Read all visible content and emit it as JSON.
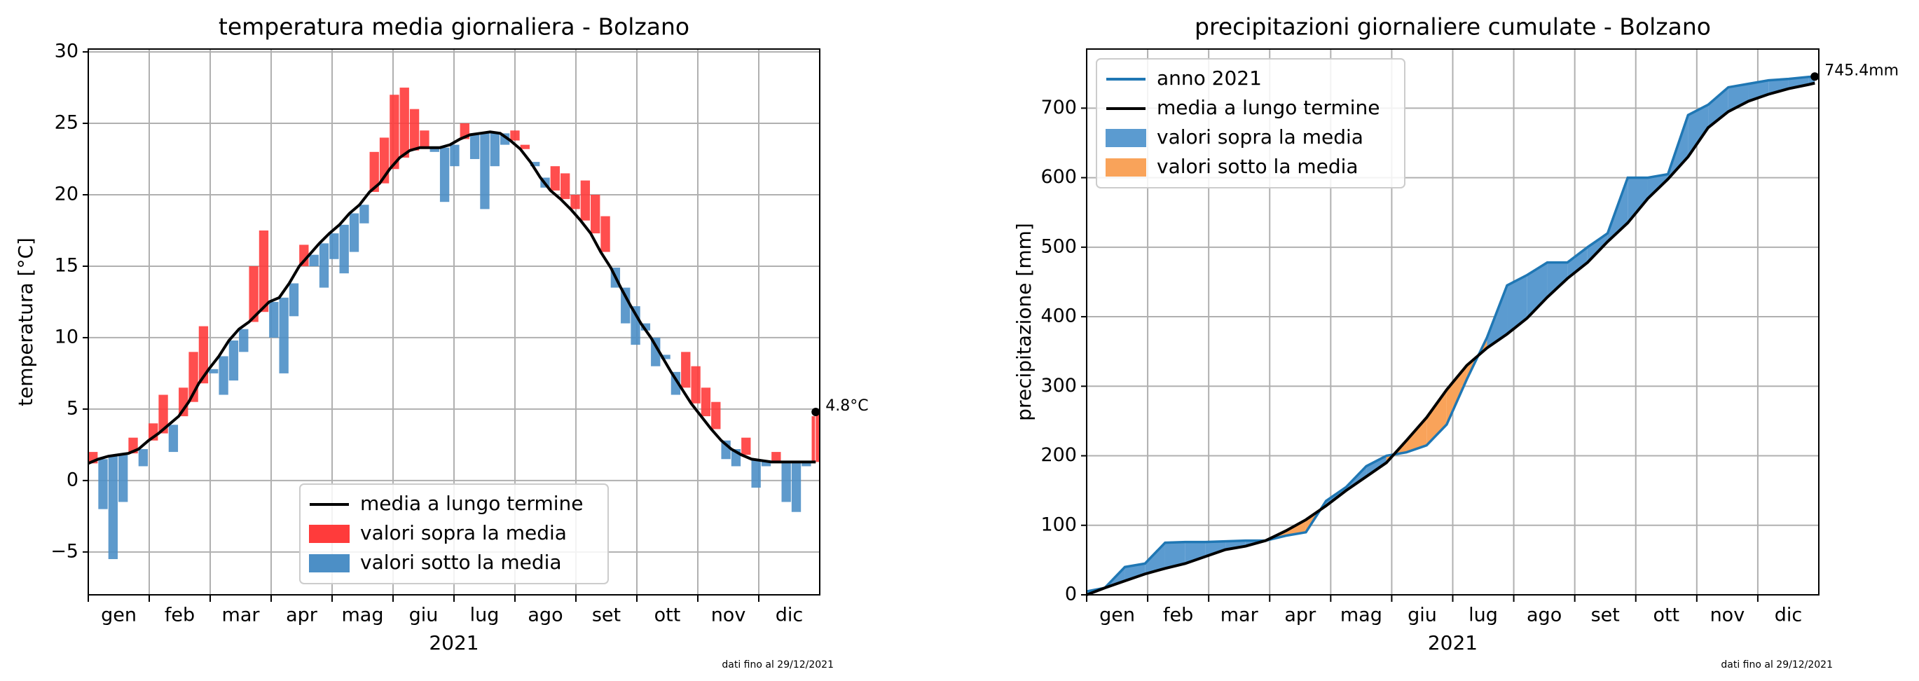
{
  "chart_data": [
    {
      "type": "bar",
      "title": "temperatura media giornaliera - Bolzano",
      "ylabel": "temperatura [°C]",
      "xlabel": "2021",
      "note": "dati fino al 29/12/2021",
      "annotation": "4.8°C",
      "categories": [
        "gen",
        "feb",
        "mar",
        "apr",
        "mag",
        "giu",
        "lug",
        "ago",
        "set",
        "ott",
        "nov",
        "dic"
      ],
      "xlim": [
        1,
        365
      ],
      "x": [
        1,
        6,
        11,
        16,
        21,
        26,
        31,
        36,
        41,
        46,
        51,
        56,
        61,
        66,
        71,
        76,
        81,
        86,
        91,
        96,
        101,
        106,
        111,
        116,
        121,
        126,
        131,
        136,
        141,
        146,
        151,
        156,
        161,
        166,
        171,
        176,
        181,
        186,
        191,
        196,
        201,
        206,
        211,
        216,
        221,
        226,
        231,
        236,
        241,
        246,
        251,
        256,
        261,
        266,
        271,
        276,
        281,
        286,
        291,
        296,
        301,
        306,
        311,
        316,
        321,
        326,
        331,
        336,
        341,
        346,
        351,
        356,
        361,
        363
      ],
      "values": [
        2.0,
        -2.0,
        -5.5,
        -1.5,
        3.0,
        1.0,
        4.0,
        6.0,
        2.0,
        6.5,
        9.0,
        10.8,
        7.5,
        6.0,
        7.0,
        9.0,
        15.0,
        17.5,
        10.0,
        7.5,
        11.5,
        16.5,
        15.0,
        13.5,
        15.5,
        14.5,
        16.0,
        18.0,
        23.0,
        24.0,
        27.0,
        27.5,
        26.0,
        24.5,
        23.0,
        19.5,
        22.0,
        25.0,
        22.5,
        19.0,
        22.0,
        23.5,
        24.5,
        23.5,
        22.0,
        20.5,
        22.0,
        21.5,
        20.0,
        21.0,
        20.0,
        18.5,
        13.5,
        11.0,
        9.5,
        10.5,
        8.0,
        8.5,
        6.0,
        9.0,
        8.0,
        6.5,
        5.5,
        1.5,
        1.0,
        3.0,
        -0.5,
        1.0,
        2.0,
        -1.5,
        -2.2,
        1.0,
        4.5,
        4.8
      ],
      "series": [
        {
          "name": "media a lungo termine",
          "color": "#000000",
          "values": [
            1.2,
            1.5,
            1.7,
            1.8,
            1.9,
            2.2,
            2.8,
            3.3,
            3.9,
            4.5,
            5.5,
            6.8,
            7.8,
            8.7,
            9.8,
            10.6,
            11.1,
            11.8,
            12.5,
            12.8,
            13.8,
            15.0,
            15.8,
            16.6,
            17.3,
            17.9,
            18.7,
            19.3,
            20.2,
            20.8,
            21.8,
            22.6,
            23.1,
            23.3,
            23.3,
            23.3,
            23.5,
            23.9,
            24.2,
            24.3,
            24.4,
            24.3,
            23.8,
            23.2,
            22.3,
            21.2,
            20.3,
            19.7,
            19.0,
            18.2,
            17.3,
            16.0,
            14.9,
            13.5,
            12.2,
            11.0,
            10.0,
            8.8,
            7.6,
            6.5,
            5.4,
            4.5,
            3.6,
            2.8,
            2.2,
            1.8,
            1.5,
            1.4,
            1.3,
            1.3,
            1.3,
            1.3,
            1.3,
            1.3
          ]
        }
      ],
      "fills": [
        {
          "name": "valori sopra la media",
          "color": "#ff3b3b"
        },
        {
          "name": "valori sotto la media",
          "color": "#4c8fc6"
        }
      ],
      "ylim": [
        -8,
        30.2
      ],
      "yticks": [
        {
          "value": -5,
          "label": "−5"
        },
        0,
        5,
        10,
        15,
        20,
        25,
        30
      ],
      "grid": true,
      "legend": "lower center"
    },
    {
      "type": "area",
      "title": "precipitazioni giornaliere cumulate - Bolzano",
      "ylabel": "precipitazione [mm]",
      "xlabel": "2021",
      "note": "dati fino al 29/12/2021",
      "annotation": "745.4mm",
      "categories": [
        "gen",
        "feb",
        "mar",
        "apr",
        "mag",
        "giu",
        "lug",
        "ago",
        "set",
        "ott",
        "nov",
        "dic"
      ],
      "xlim": [
        1,
        365
      ],
      "x": [
        1,
        10,
        20,
        30,
        40,
        50,
        60,
        70,
        80,
        90,
        100,
        110,
        120,
        130,
        140,
        150,
        160,
        170,
        180,
        190,
        200,
        210,
        220,
        230,
        240,
        250,
        260,
        270,
        280,
        290,
        300,
        310,
        320,
        330,
        340,
        350,
        360,
        363
      ],
      "series": [
        {
          "name": "anno 2021",
          "color": "#1f77b4",
          "values": [
            5,
            10,
            40,
            45,
            75,
            76,
            76,
            77,
            78,
            78,
            85,
            90,
            135,
            155,
            185,
            200,
            205,
            215,
            245,
            310,
            370,
            445,
            460,
            478,
            478,
            500,
            520,
            600,
            600,
            605,
            690,
            705,
            730,
            735,
            740,
            742,
            745,
            745.4
          ]
        },
        {
          "name": "media a lungo termine",
          "color": "#000000",
          "values": [
            0,
            10,
            20,
            30,
            38,
            45,
            55,
            65,
            70,
            78,
            92,
            108,
            128,
            150,
            170,
            190,
            222,
            255,
            295,
            330,
            355,
            375,
            398,
            428,
            455,
            478,
            508,
            535,
            570,
            598,
            630,
            672,
            695,
            710,
            720,
            728,
            734,
            736
          ]
        }
      ],
      "fills": [
        {
          "name": "valori sopra la media",
          "color": "#5b9bd0"
        },
        {
          "name": "valori sotto la media",
          "color": "#f9a35a"
        }
      ],
      "ylim": [
        0,
        785
      ],
      "yticks": [
        0,
        100,
        200,
        300,
        400,
        500,
        600,
        700
      ],
      "grid": true,
      "legend": "upper left"
    }
  ]
}
